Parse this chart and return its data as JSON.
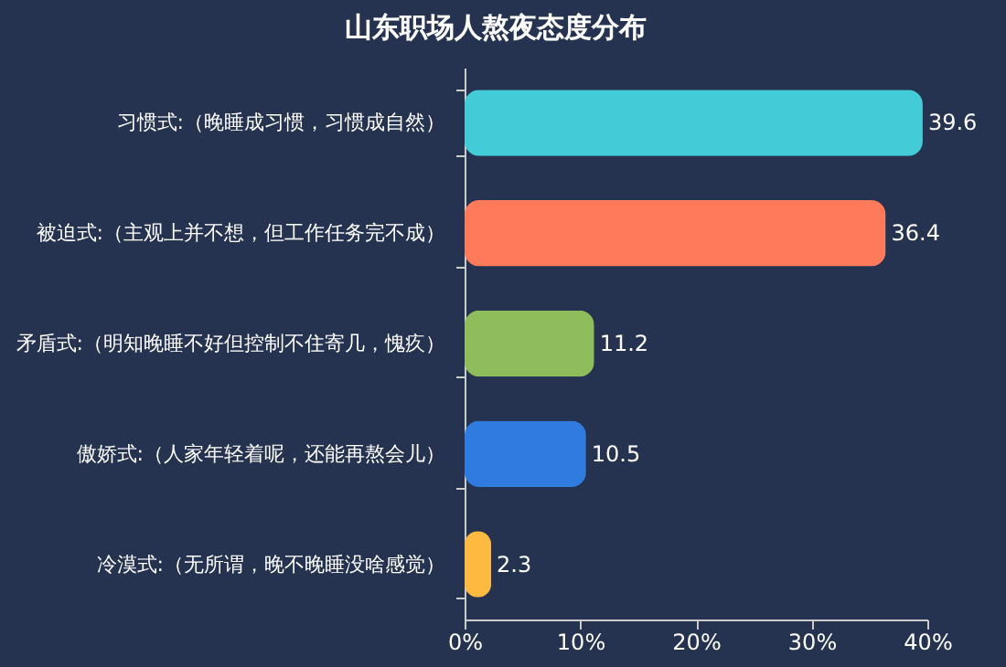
{
  "chart_data": {
    "type": "bar",
    "orientation": "horizontal",
    "title": "山东职场人熬夜态度分布",
    "categories": [
      "习惯式:（晚睡成习惯，习惯成自然）",
      "被迫式:（主观上并不想，但工作任务完不成）",
      "矛盾式:（明知晚睡不好但控制不住寄几，愧疚）",
      "傲娇式:（人家年轻着呢，还能再熬会儿）",
      "冷漠式:（无所谓，晚不晚睡没啥感觉）"
    ],
    "values": [
      39.6,
      36.4,
      11.2,
      10.5,
      2.3
    ],
    "colors": [
      "#43cbd8",
      "#fe7a5b",
      "#8fbd5b",
      "#2f7be0",
      "#fdb940"
    ],
    "xlim": [
      0,
      40
    ],
    "xticks": [
      {
        "value": 0,
        "label": "0%"
      },
      {
        "value": 10,
        "label": "10%"
      },
      {
        "value": 20,
        "label": "20%"
      },
      {
        "value": 30,
        "label": "30%"
      },
      {
        "value": 40,
        "label": "40%"
      }
    ],
    "data_labels": true
  }
}
